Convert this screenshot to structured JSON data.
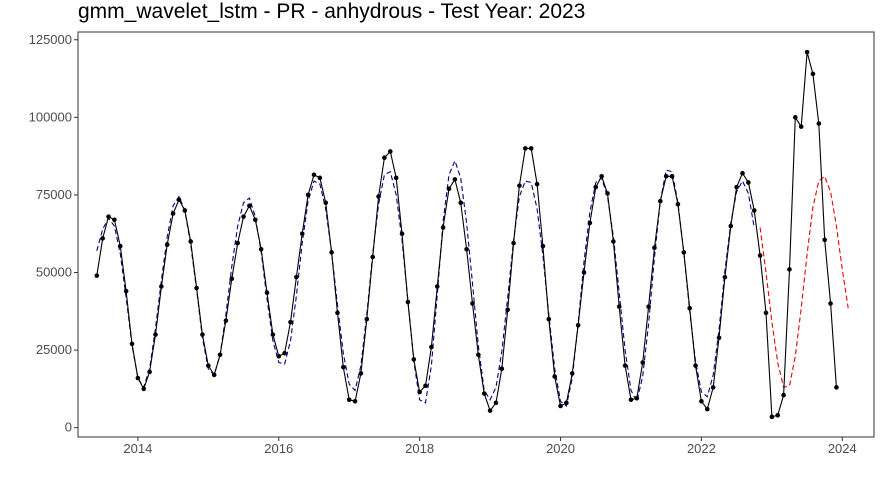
{
  "chart_data": {
    "type": "line",
    "title": "gmm_wavelet_lstm - PR - anhydrous - Test Year: 2023",
    "xlabel": "",
    "ylabel": "",
    "xlim": [
      2013.15,
      2024.45
    ],
    "ylim": [
      -3000,
      127500
    ],
    "x_ticks": [
      2014,
      2016,
      2018,
      2020,
      2022,
      2024
    ],
    "x_tick_labels": [
      "2014",
      "2016",
      "2018",
      "2020",
      "2022",
      "2024"
    ],
    "y_ticks": [
      0,
      25000,
      50000,
      75000,
      100000,
      125000
    ],
    "y_tick_labels": [
      "0",
      "25000",
      "50000",
      "75000",
      "100000",
      "125000"
    ],
    "grid": false,
    "legend": "none",
    "start": {
      "year": 2013,
      "month": 6
    },
    "series": [
      {
        "role": "actual",
        "style": "solid-line-with-points",
        "color": "#000000",
        "values": [
          49000,
          61000,
          68000,
          67000,
          58500,
          44000,
          27000,
          16000,
          12500,
          18000,
          30000,
          45500,
          59000,
          69000,
          73500,
          70000,
          60000,
          45000,
          30000,
          20000,
          17000,
          23500,
          34500,
          48000,
          59500,
          68000,
          71500,
          67000,
          57500,
          43500,
          30000,
          23000,
          24000,
          34000,
          48500,
          62500,
          75000,
          81500,
          80500,
          72500,
          56500,
          37000,
          19500,
          9000,
          8500,
          17500,
          35000,
          55000,
          74500,
          87000,
          89000,
          80500,
          62500,
          40500,
          22000,
          11500,
          13500,
          26000,
          45500,
          64500,
          77000,
          80000,
          72500,
          57500,
          40000,
          23500,
          11000,
          5500,
          8000,
          19000,
          38000,
          59500,
          78000,
          90000,
          90000,
          78500,
          58500,
          35000,
          16500,
          7000,
          8000,
          17500,
          33000,
          50000,
          66000,
          77500,
          81000,
          75500,
          60000,
          39000,
          20000,
          9000,
          9500,
          21000,
          39000,
          58000,
          73000,
          81000,
          81000,
          72000,
          56500,
          38500,
          20000,
          8500,
          6000,
          13000,
          29000,
          48500,
          65000,
          77500,
          82000,
          79000,
          70000,
          55500,
          37000,
          3500,
          4000,
          10500,
          51000,
          100000,
          97000,
          121000,
          114000,
          98000,
          60500,
          40000,
          13000
        ]
      },
      {
        "role": "fitted",
        "style": "dashed",
        "color": "#00008b",
        "values": [
          57000,
          64000,
          67500,
          65000,
          56000,
          42000,
          26500,
          16000,
          13000,
          19000,
          32000,
          47500,
          61500,
          71500,
          74500,
          70000,
          59000,
          44500,
          29000,
          19000,
          17000,
          23500,
          36500,
          52000,
          65000,
          72500,
          74000,
          68000,
          56500,
          41500,
          28000,
          21000,
          20500,
          28000,
          42500,
          59500,
          73000,
          79500,
          78500,
          70500,
          56500,
          39500,
          24000,
          14000,
          12000,
          20000,
          36500,
          56000,
          72000,
          81500,
          82500,
          75000,
          60500,
          41000,
          21500,
          9000,
          8000,
          20000,
          43000,
          66500,
          81500,
          86000,
          80500,
          66000,
          46500,
          26500,
          12000,
          9000,
          13000,
          24500,
          42000,
          60500,
          74500,
          79500,
          79000,
          70500,
          55500,
          36500,
          19000,
          8500,
          7000,
          16000,
          33500,
          53500,
          69500,
          79000,
          80500,
          74500,
          61500,
          43500,
          25000,
          12000,
          8500,
          16500,
          33500,
          55000,
          73000,
          83000,
          82500,
          72500,
          56500,
          37500,
          21500,
          11500,
          10000,
          17000,
          31500,
          50500,
          66000,
          76000,
          79500,
          75500,
          64500
        ]
      },
      {
        "role": "forecast",
        "style": "dashed",
        "color": "#ee0000",
        "values": [
          64500,
          50000,
          34000,
          21000,
          13000,
          13500,
          23000,
          38500,
          56000,
          71000,
          79500,
          81000,
          76000,
          65000,
          51000,
          38500
        ]
      }
    ]
  }
}
